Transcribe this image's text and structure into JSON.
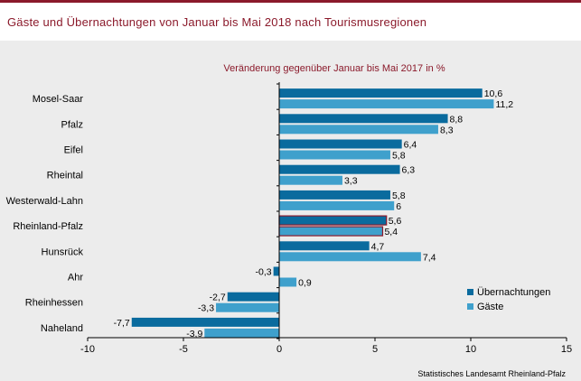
{
  "title": "Gäste und Übernachtungen von Januar bis Mai 2018 nach Tourismusregionen",
  "chart_data": {
    "type": "bar",
    "orientation": "horizontal",
    "subtitle": "Veränderung  gegenüber Januar bis Mai 2017 in %",
    "categories": [
      "Mosel-Saar",
      "Pfalz",
      "Eifel",
      "Rheintal",
      "Westerwald-Lahn",
      "Rheinland-Pfalz",
      "Hunsrück",
      "Ahr",
      "Rheinhessen",
      "Naheland"
    ],
    "series": [
      {
        "name": "Übernachtungen",
        "color": "#0a6b9e",
        "values": [
          10.6,
          8.8,
          6.4,
          6.3,
          5.8,
          5.6,
          4.7,
          -0.3,
          -2.7,
          -7.7
        ]
      },
      {
        "name": "Gäste",
        "color": "#3fa0cc",
        "values": [
          11.2,
          8.3,
          5.8,
          3.3,
          6.0,
          5.4,
          7.4,
          0.9,
          -3.3,
          -3.9
        ]
      }
    ],
    "highlight_category": "Rheinland-Pfalz",
    "highlight_outline_color": "#8b1a2b",
    "xlim": [
      -10,
      15
    ],
    "xticks": [
      -10,
      -5,
      0,
      5,
      10,
      15
    ],
    "legend_position": "bottom-right",
    "grid": false
  },
  "source": "Statistisches Landesamt Rheinland-Pfalz"
}
